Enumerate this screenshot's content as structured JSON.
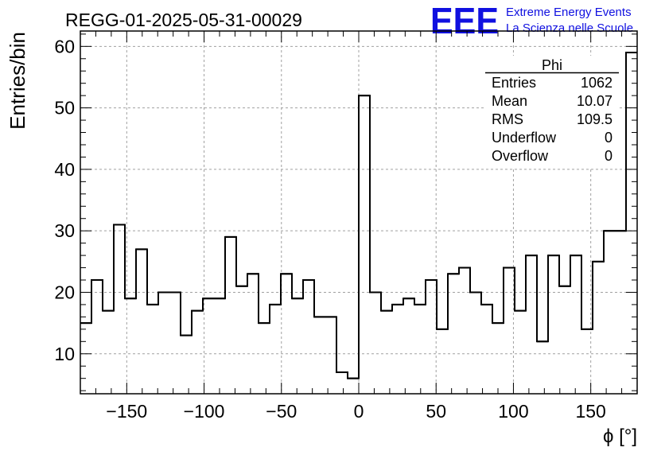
{
  "chart_data": {
    "type": "bar",
    "title": "REGG-01-2025-05-31-00029",
    "xlabel": "ϕ [°]",
    "ylabel": "Entries/bin",
    "xlim": [
      -180,
      180
    ],
    "ylim": [
      3.5,
      62.5
    ],
    "grid": true,
    "bin_width": 7.2,
    "bin_low_edges": [
      -180,
      -172.8,
      -165.6,
      -158.4,
      -151.2,
      -144,
      -136.8,
      -129.6,
      -122.4,
      -115.2,
      -108,
      -100.8,
      -93.6,
      -86.4,
      -79.2,
      -72,
      -64.8,
      -57.6,
      -50.4,
      -43.2,
      -36,
      -28.8,
      -21.6,
      -14.4,
      -7.2,
      0,
      7.2,
      14.4,
      21.6,
      28.8,
      36,
      43.2,
      50.4,
      57.6,
      64.8,
      72,
      79.2,
      86.4,
      93.6,
      100.8,
      108,
      115.2,
      122.4,
      129.6,
      136.8,
      144,
      151.2,
      158.4,
      165.6,
      172.8
    ],
    "values": [
      15,
      22,
      17,
      31,
      19,
      27,
      18,
      20,
      20,
      13,
      17,
      19,
      19,
      29,
      21,
      23,
      15,
      18,
      23,
      19,
      22,
      16,
      16,
      7,
      6,
      52,
      20,
      17,
      18,
      19,
      18,
      22,
      14,
      23,
      24,
      20,
      18,
      15,
      24,
      17,
      26,
      12,
      26,
      21,
      26,
      14,
      25,
      30,
      30,
      59
    ],
    "x_ticks": [
      -150,
      -100,
      -50,
      0,
      50,
      100,
      150
    ],
    "x_tick_labels": [
      "−150",
      "−100",
      "−50",
      "0",
      "50",
      "100",
      "150"
    ],
    "y_ticks": [
      10,
      20,
      30,
      40,
      50,
      60
    ],
    "y_tick_labels": [
      "10",
      "20",
      "30",
      "40",
      "50",
      "60"
    ],
    "stats_box": {
      "title": "Phi",
      "rows": [
        {
          "label": "Entries",
          "value": "1062"
        },
        {
          "label": "Mean",
          "value": "10.07"
        },
        {
          "label": "RMS",
          "value": "109.5"
        },
        {
          "label": "Underflow",
          "value": "0"
        },
        {
          "label": "Overflow",
          "value": "0"
        }
      ]
    }
  },
  "logo": {
    "text": "EEE",
    "line1": "Extreme Energy Events",
    "line2": "La Scienza nelle Scuole",
    "color": "#1010e0"
  },
  "colors": {
    "line": "#000000",
    "grid": "#a0a0a0",
    "logo": "#1010e0"
  }
}
